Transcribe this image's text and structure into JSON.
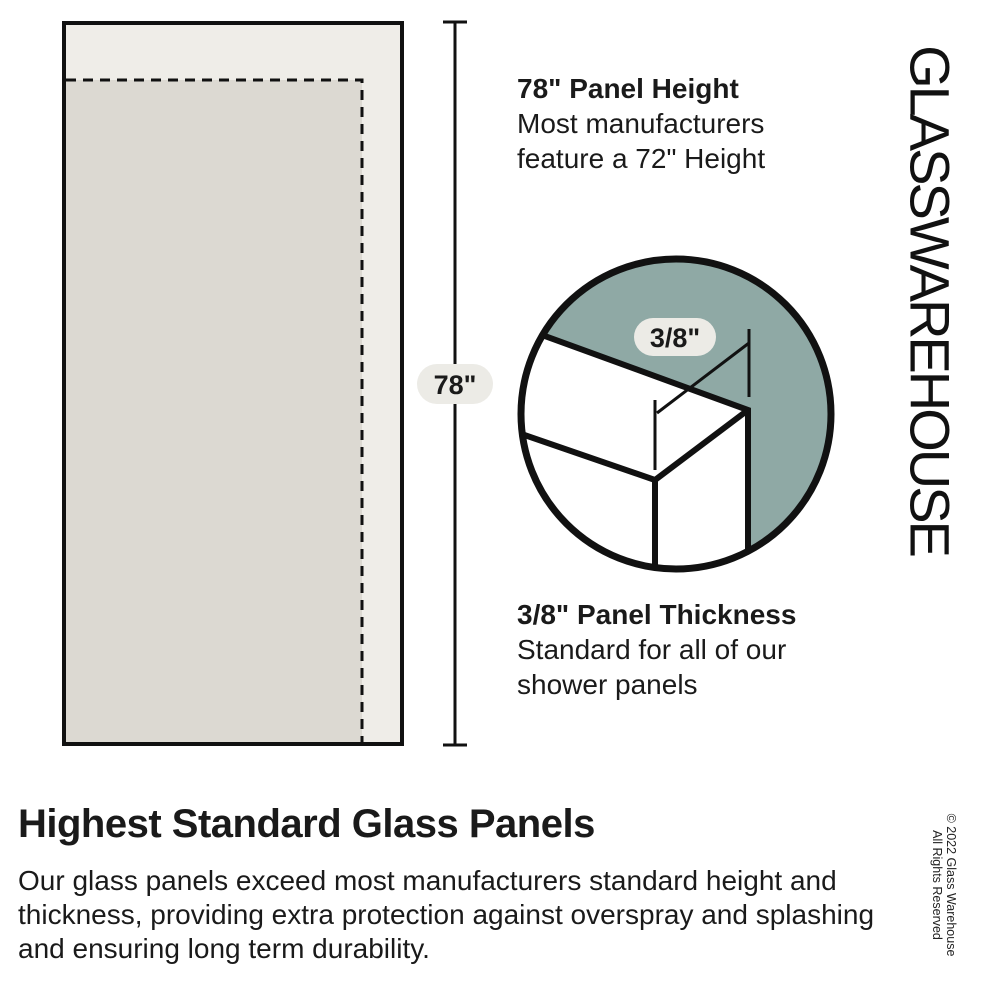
{
  "brand": "GLASSWAREHOUSE",
  "panel_diagram": {
    "height_label": "78\"",
    "colors": {
      "panel_outer": "#efede8",
      "panel_inner": "#dcd9d2",
      "glass_edge": "#8fa9a5",
      "pill": "#ecebe6"
    }
  },
  "height_callout": {
    "heading": "78\" Panel Height",
    "lines": [
      "Most manufacturers",
      "feature a 72\" Height"
    ]
  },
  "thickness_diagram": {
    "label": "3/8\""
  },
  "thickness_callout": {
    "heading": "3/8\" Panel Thickness",
    "lines": [
      "Standard for all of our",
      "shower panels"
    ]
  },
  "footer": {
    "title": "Highest Standard Glass Panels",
    "body": "Our glass panels exceed most manufacturers standard height and thickness, providing extra protection against overspray and splashing and ensuring long term durability.",
    "copyright_line1": "© 2022 Glass Warehouse",
    "copyright_line2": "All Rights Reserved"
  }
}
